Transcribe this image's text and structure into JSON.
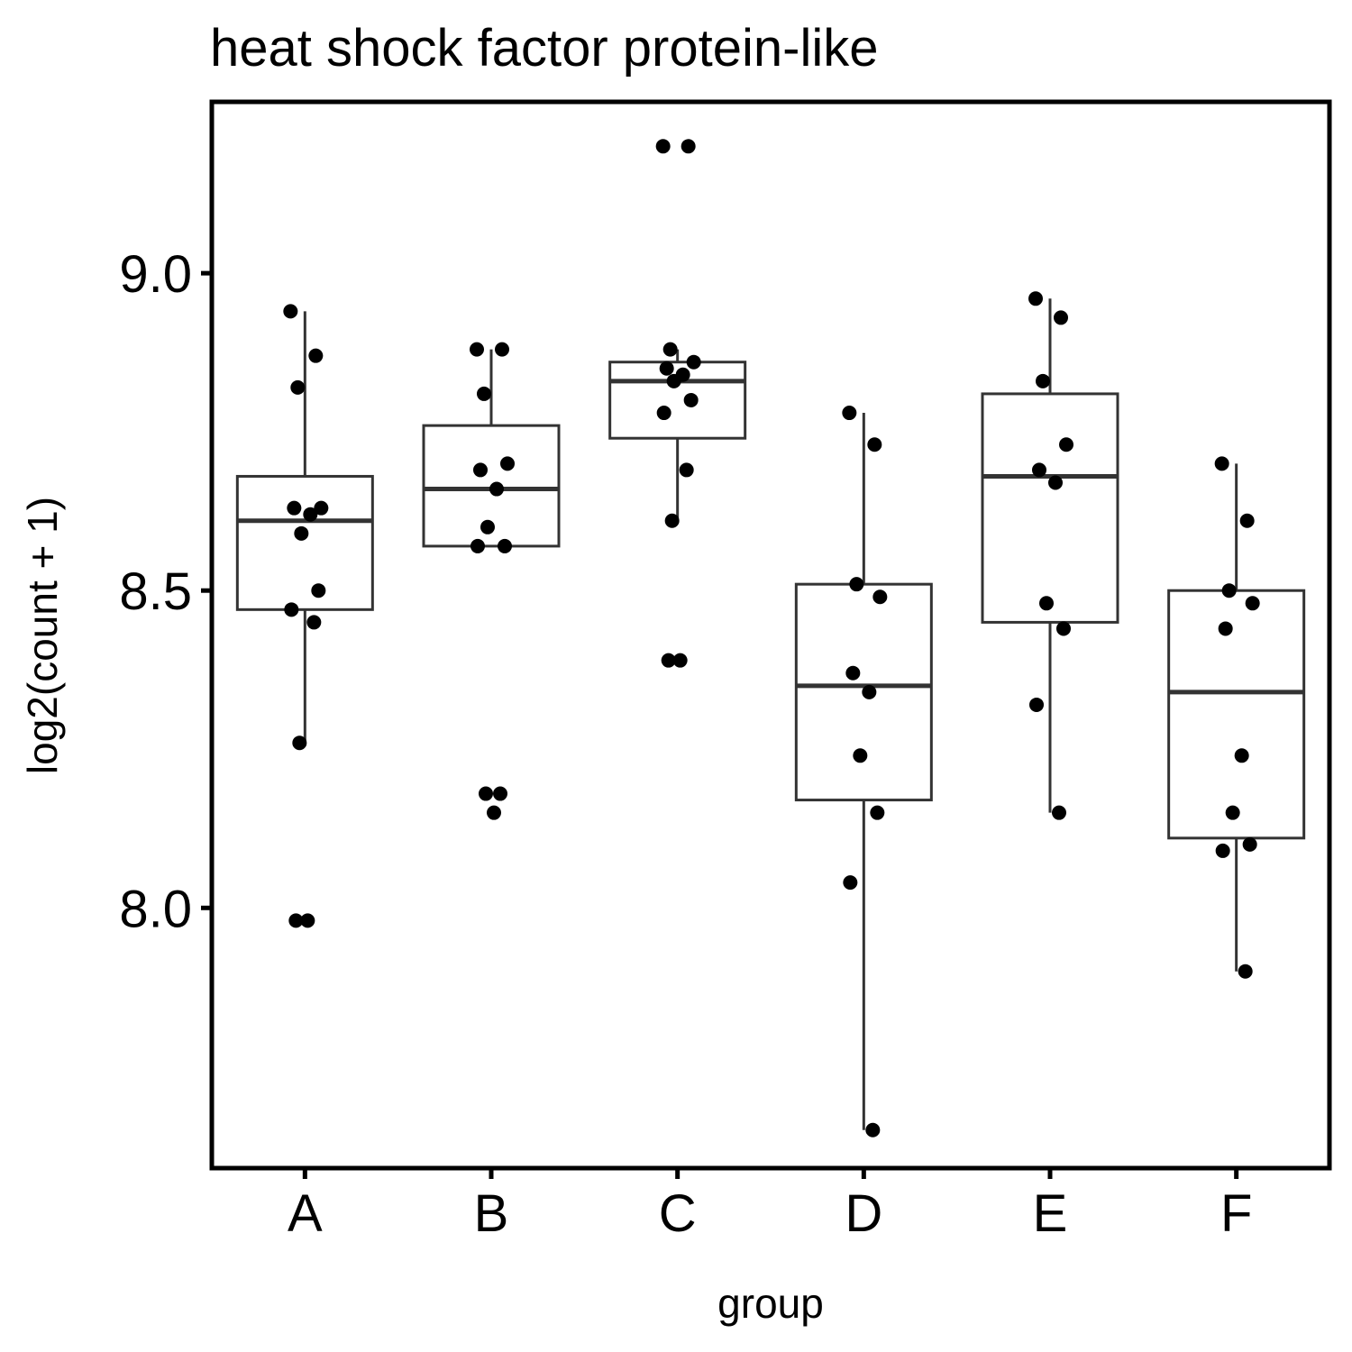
{
  "chart_data": {
    "type": "boxplot",
    "title": "heat shock factor protein-like",
    "xlabel": "group",
    "ylabel": "log2(count + 1)",
    "ylim": [
      7.59,
      9.27
    ],
    "yticks": [
      8.0,
      8.5,
      9.0
    ],
    "ytick_labels": [
      "8.0",
      "8.5",
      "9.0"
    ],
    "grid": false,
    "legend": "none",
    "categories": [
      "A",
      "B",
      "C",
      "D",
      "E",
      "F"
    ],
    "boxes": [
      {
        "group": "A",
        "whisker_low": 8.26,
        "q1": 8.47,
        "median": 8.61,
        "q3": 8.68,
        "whisker_high": 8.94
      },
      {
        "group": "B",
        "whisker_low": 8.57,
        "q1": 8.57,
        "median": 8.66,
        "q3": 8.76,
        "whisker_high": 8.88
      },
      {
        "group": "C",
        "whisker_low": 8.61,
        "q1": 8.74,
        "median": 8.83,
        "q3": 8.86,
        "whisker_high": 8.88
      },
      {
        "group": "D",
        "whisker_low": 7.65,
        "q1": 8.17,
        "median": 8.35,
        "q3": 8.51,
        "whisker_high": 8.78
      },
      {
        "group": "E",
        "whisker_low": 8.15,
        "q1": 8.45,
        "median": 8.68,
        "q3": 8.81,
        "whisker_high": 8.96
      },
      {
        "group": "F",
        "whisker_low": 7.9,
        "q1": 8.11,
        "median": 8.34,
        "q3": 8.5,
        "whisker_high": 8.7
      }
    ],
    "points": {
      "A": [
        8.94,
        8.87,
        8.82,
        8.63,
        8.63,
        8.62,
        8.59,
        8.5,
        8.47,
        8.45,
        8.26,
        7.98,
        7.98
      ],
      "B": [
        8.88,
        8.88,
        8.81,
        8.7,
        8.69,
        8.66,
        8.6,
        8.57,
        8.57,
        8.18,
        8.18,
        8.15
      ],
      "C": [
        9.2,
        9.2,
        8.88,
        8.86,
        8.85,
        8.84,
        8.83,
        8.8,
        8.78,
        8.69,
        8.61,
        8.39,
        8.39
      ],
      "D": [
        8.78,
        8.73,
        8.51,
        8.49,
        8.37,
        8.34,
        8.24,
        8.15,
        8.04,
        7.65
      ],
      "E": [
        8.96,
        8.93,
        8.83,
        8.73,
        8.69,
        8.67,
        8.48,
        8.44,
        8.32,
        8.15
      ],
      "F": [
        8.7,
        8.61,
        8.5,
        8.48,
        8.44,
        8.24,
        8.15,
        8.1,
        8.09,
        7.9
      ]
    }
  }
}
